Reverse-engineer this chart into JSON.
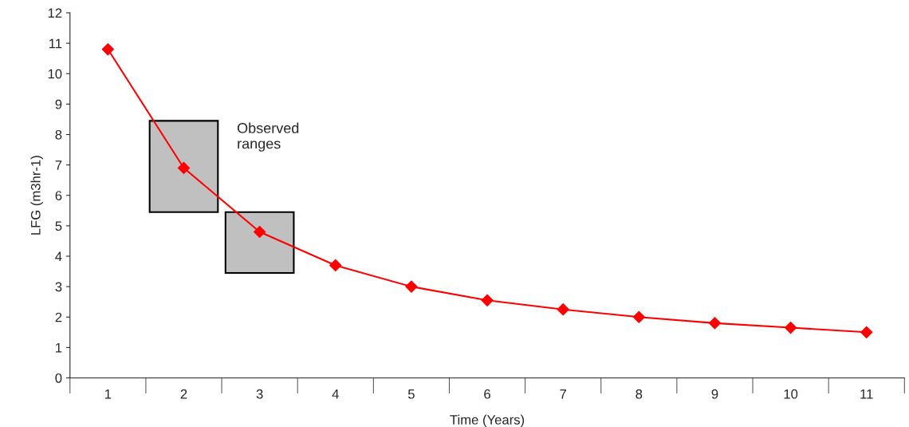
{
  "chart_data": {
    "type": "line",
    "xlabel": "Time (Years)",
    "ylabel": "LFG (m3hr-1)",
    "categories": [
      "1",
      "2",
      "3",
      "4",
      "5",
      "6",
      "7",
      "8",
      "9",
      "10",
      "11"
    ],
    "series": [
      {
        "type": "bar",
        "color": "#c0c0c0",
        "values": [
          null,
          3.0,
          2.0,
          null,
          null,
          null,
          null,
          null,
          null,
          null,
          null
        ],
        "base": [
          null,
          5.45,
          3.45,
          null,
          null,
          null,
          null,
          null,
          null,
          null,
          null
        ]
      },
      {
        "type": "line",
        "color": "#ff0000",
        "values": [
          10.8,
          6.9,
          4.8,
          3.7,
          3.0,
          2.55,
          2.25,
          2.0,
          1.8,
          1.65,
          1.5
        ]
      }
    ],
    "annotations": [
      "Observed ranges"
    ],
    "ylim": [
      0,
      12
    ],
    "yticks": [
      0,
      1,
      2,
      3,
      4,
      5,
      6,
      7,
      8,
      9,
      10,
      11,
      12
    ],
    "grid": false,
    "legend": false,
    "marker": "diamond",
    "line_style": "solid"
  }
}
